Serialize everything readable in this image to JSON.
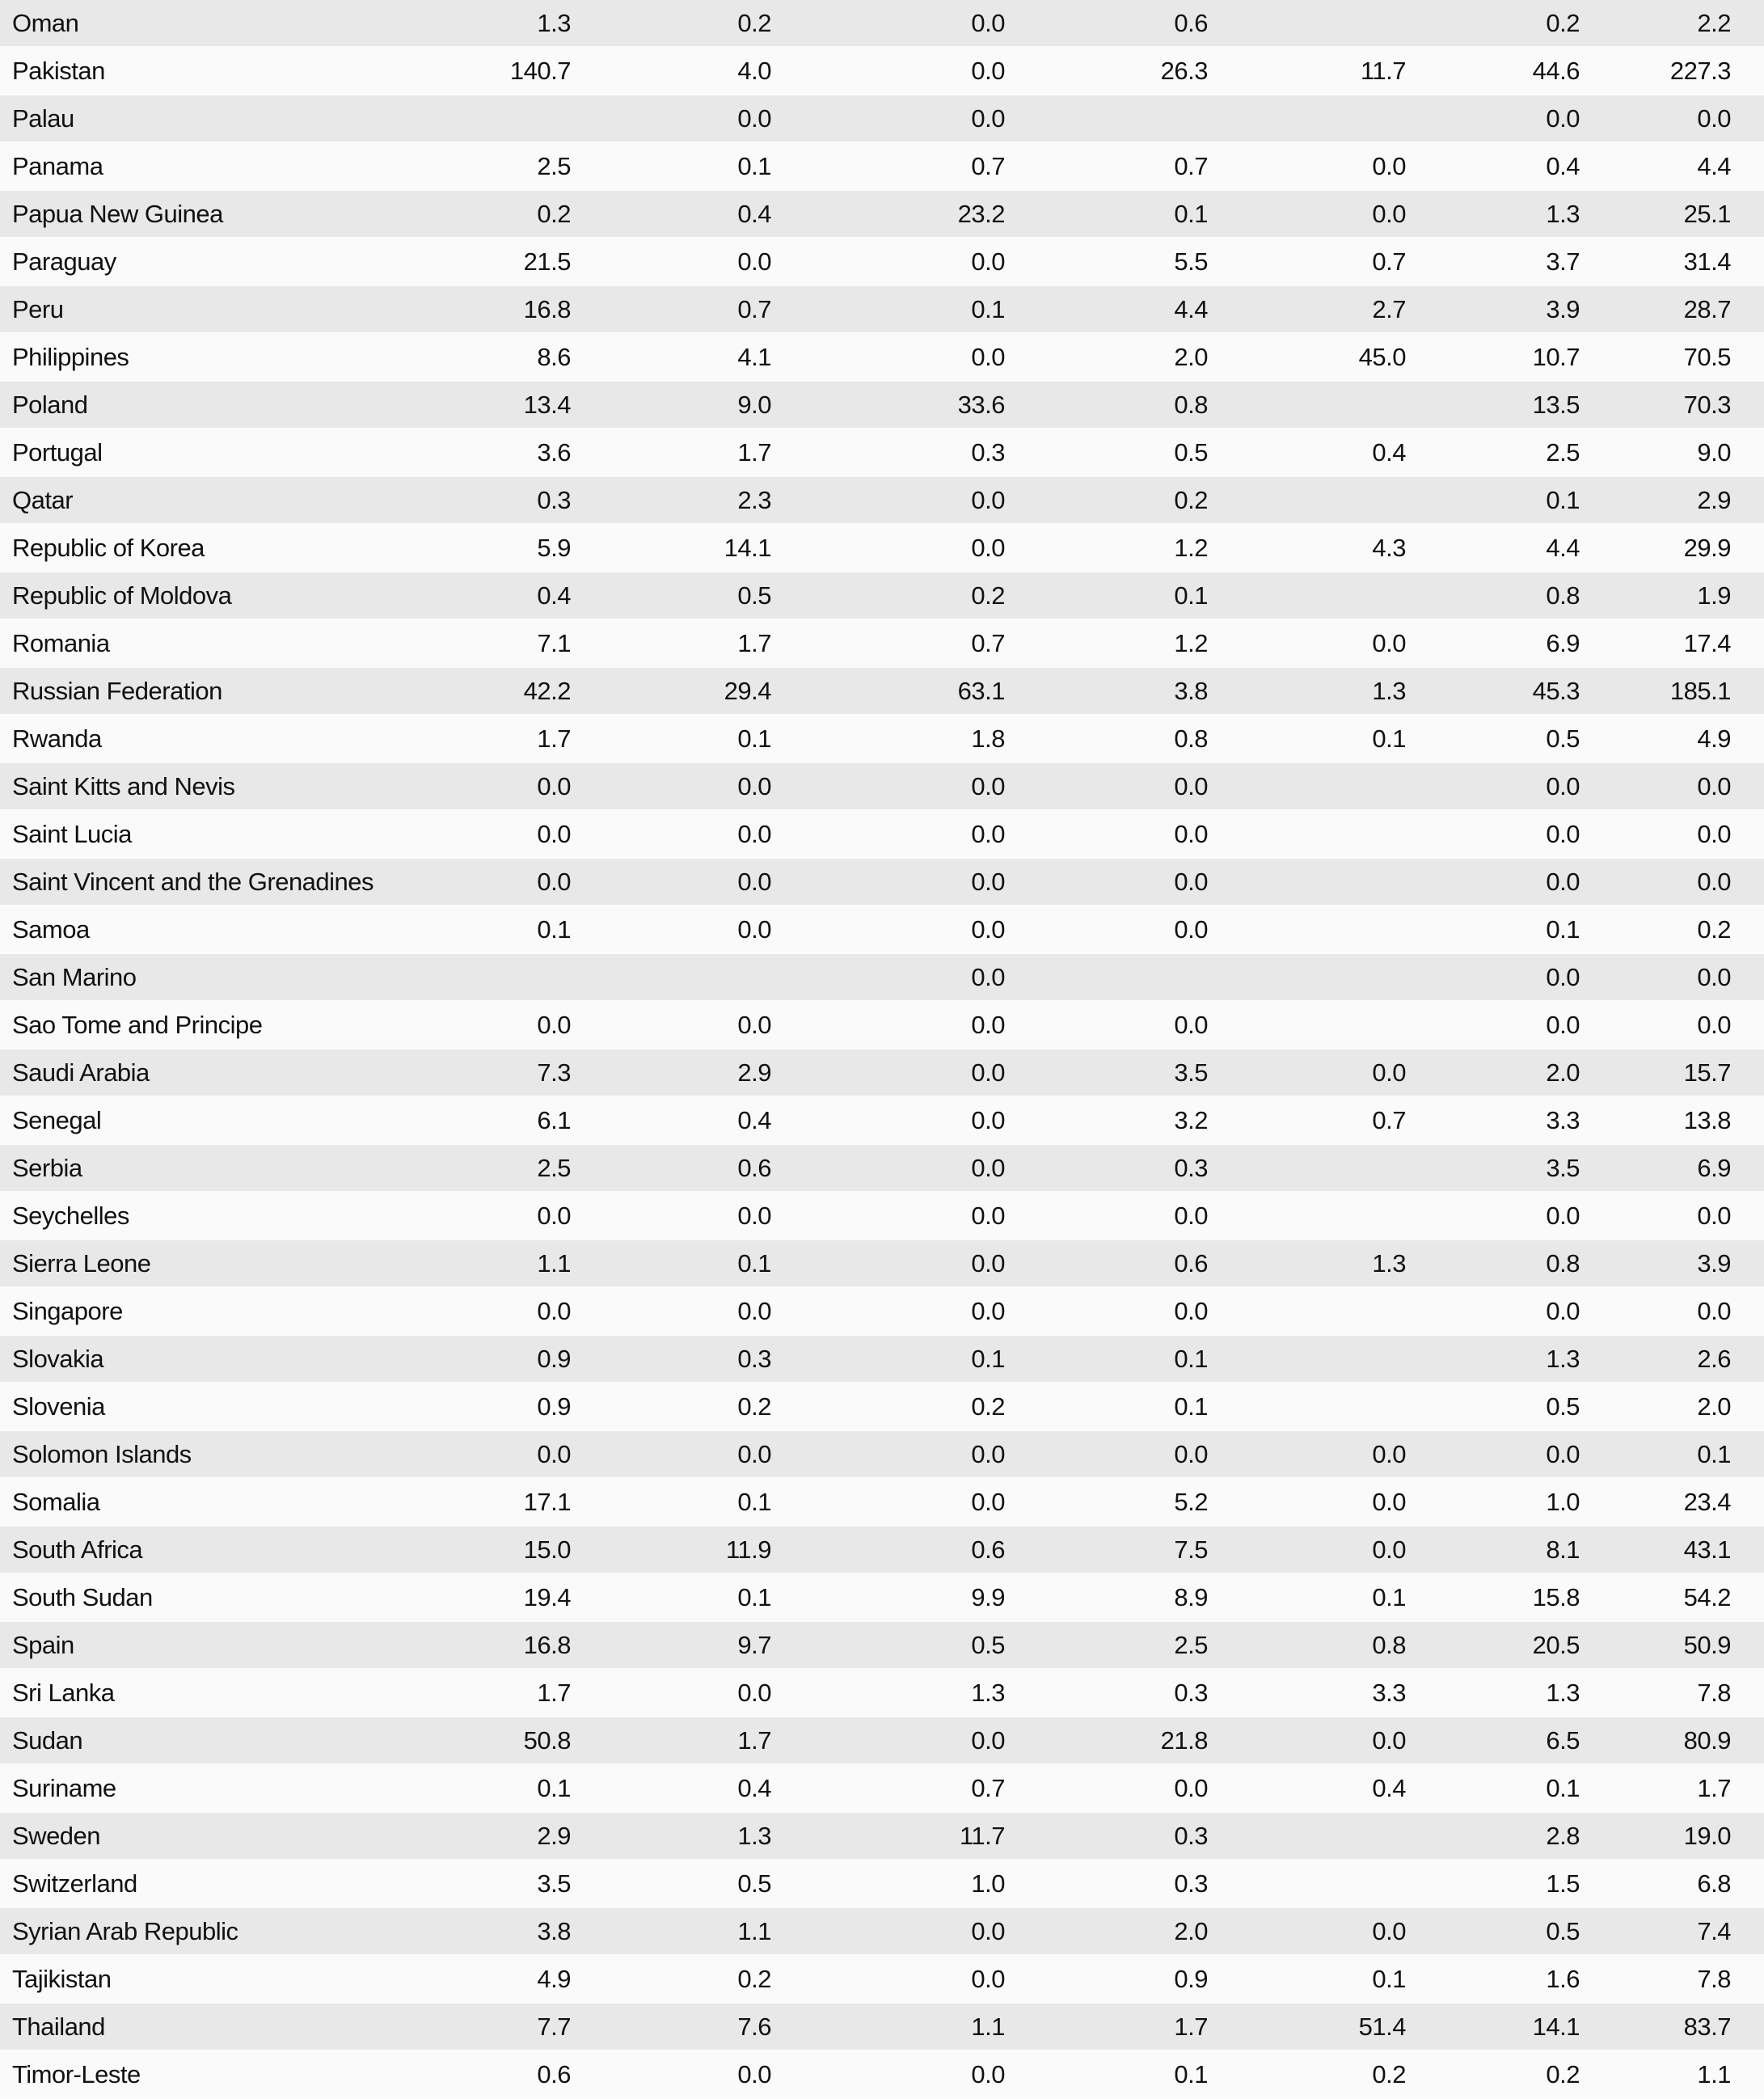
{
  "table": {
    "rows": [
      {
        "country": "Oman",
        "values": [
          "1.3",
          "0.2",
          "0.0",
          "0.6",
          "",
          "0.2",
          "2.2"
        ]
      },
      {
        "country": "Pakistan",
        "values": [
          "140.7",
          "4.0",
          "0.0",
          "26.3",
          "11.7",
          "44.6",
          "227.3"
        ]
      },
      {
        "country": "Palau",
        "values": [
          "",
          "0.0",
          "0.0",
          "",
          "",
          "0.0",
          "0.0"
        ]
      },
      {
        "country": "Panama",
        "values": [
          "2.5",
          "0.1",
          "0.7",
          "0.7",
          "0.0",
          "0.4",
          "4.4"
        ]
      },
      {
        "country": "Papua New Guinea",
        "values": [
          "0.2",
          "0.4",
          "23.2",
          "0.1",
          "0.0",
          "1.3",
          "25.1"
        ]
      },
      {
        "country": "Paraguay",
        "values": [
          "21.5",
          "0.0",
          "0.0",
          "5.5",
          "0.7",
          "3.7",
          "31.4"
        ]
      },
      {
        "country": "Peru",
        "values": [
          "16.8",
          "0.7",
          "0.1",
          "4.4",
          "2.7",
          "3.9",
          "28.7"
        ]
      },
      {
        "country": "Philippines",
        "values": [
          "8.6",
          "4.1",
          "0.0",
          "2.0",
          "45.0",
          "10.7",
          "70.5"
        ]
      },
      {
        "country": "Poland",
        "values": [
          "13.4",
          "9.0",
          "33.6",
          "0.8",
          "",
          "13.5",
          "70.3"
        ]
      },
      {
        "country": "Portugal",
        "values": [
          "3.6",
          "1.7",
          "0.3",
          "0.5",
          "0.4",
          "2.5",
          "9.0"
        ]
      },
      {
        "country": "Qatar",
        "values": [
          "0.3",
          "2.3",
          "0.0",
          "0.2",
          "",
          "0.1",
          "2.9"
        ]
      },
      {
        "country": "Republic of Korea",
        "values": [
          "5.9",
          "14.1",
          "0.0",
          "1.2",
          "4.3",
          "4.4",
          "29.9"
        ]
      },
      {
        "country": "Republic of Moldova",
        "values": [
          "0.4",
          "0.5",
          "0.2",
          "0.1",
          "",
          "0.8",
          "1.9"
        ]
      },
      {
        "country": "Romania",
        "values": [
          "7.1",
          "1.7",
          "0.7",
          "1.2",
          "0.0",
          "6.9",
          "17.4"
        ]
      },
      {
        "country": "Russian Federation",
        "values": [
          "42.2",
          "29.4",
          "63.1",
          "3.8",
          "1.3",
          "45.3",
          "185.1"
        ]
      },
      {
        "country": "Rwanda",
        "values": [
          "1.7",
          "0.1",
          "1.8",
          "0.8",
          "0.1",
          "0.5",
          "4.9"
        ]
      },
      {
        "country": "Saint Kitts and Nevis",
        "values": [
          "0.0",
          "0.0",
          "0.0",
          "0.0",
          "",
          "0.0",
          "0.0"
        ]
      },
      {
        "country": "Saint Lucia",
        "values": [
          "0.0",
          "0.0",
          "0.0",
          "0.0",
          "",
          "0.0",
          "0.0"
        ]
      },
      {
        "country": "Saint Vincent and the Grenadines",
        "values": [
          "0.0",
          "0.0",
          "0.0",
          "0.0",
          "",
          "0.0",
          "0.0"
        ]
      },
      {
        "country": "Samoa",
        "values": [
          "0.1",
          "0.0",
          "0.0",
          "0.0",
          "",
          "0.1",
          "0.2"
        ]
      },
      {
        "country": "San Marino",
        "values": [
          "",
          "",
          "0.0",
          "",
          "",
          "0.0",
          "0.0"
        ]
      },
      {
        "country": "Sao Tome and Principe",
        "values": [
          "0.0",
          "0.0",
          "0.0",
          "0.0",
          "",
          "0.0",
          "0.0"
        ]
      },
      {
        "country": "Saudi Arabia",
        "values": [
          "7.3",
          "2.9",
          "0.0",
          "3.5",
          "0.0",
          "2.0",
          "15.7"
        ]
      },
      {
        "country": "Senegal",
        "values": [
          "6.1",
          "0.4",
          "0.0",
          "3.2",
          "0.7",
          "3.3",
          "13.8"
        ]
      },
      {
        "country": "Serbia",
        "values": [
          "2.5",
          "0.6",
          "0.0",
          "0.3",
          "",
          "3.5",
          "6.9"
        ]
      },
      {
        "country": "Seychelles",
        "values": [
          "0.0",
          "0.0",
          "0.0",
          "0.0",
          "",
          "0.0",
          "0.0"
        ]
      },
      {
        "country": "Sierra Leone",
        "values": [
          "1.1",
          "0.1",
          "0.0",
          "0.6",
          "1.3",
          "0.8",
          "3.9"
        ]
      },
      {
        "country": "Singapore",
        "values": [
          "0.0",
          "0.0",
          "0.0",
          "0.0",
          "",
          "0.0",
          "0.0"
        ]
      },
      {
        "country": "Slovakia",
        "values": [
          "0.9",
          "0.3",
          "0.1",
          "0.1",
          "",
          "1.3",
          "2.6"
        ]
      },
      {
        "country": "Slovenia",
        "values": [
          "0.9",
          "0.2",
          "0.2",
          "0.1",
          "",
          "0.5",
          "2.0"
        ]
      },
      {
        "country": "Solomon Islands",
        "values": [
          "0.0",
          "0.0",
          "0.0",
          "0.0",
          "0.0",
          "0.0",
          "0.1"
        ]
      },
      {
        "country": "Somalia",
        "values": [
          "17.1",
          "0.1",
          "0.0",
          "5.2",
          "0.0",
          "1.0",
          "23.4"
        ]
      },
      {
        "country": "South Africa",
        "values": [
          "15.0",
          "11.9",
          "0.6",
          "7.5",
          "0.0",
          "8.1",
          "43.1"
        ]
      },
      {
        "country": "South Sudan",
        "values": [
          "19.4",
          "0.1",
          "9.9",
          "8.9",
          "0.1",
          "15.8",
          "54.2"
        ]
      },
      {
        "country": "Spain",
        "values": [
          "16.8",
          "9.7",
          "0.5",
          "2.5",
          "0.8",
          "20.5",
          "50.9"
        ]
      },
      {
        "country": "Sri Lanka",
        "values": [
          "1.7",
          "0.0",
          "1.3",
          "0.3",
          "3.3",
          "1.3",
          "7.8"
        ]
      },
      {
        "country": "Sudan",
        "values": [
          "50.8",
          "1.7",
          "0.0",
          "21.8",
          "0.0",
          "6.5",
          "80.9"
        ]
      },
      {
        "country": "Suriname",
        "values": [
          "0.1",
          "0.4",
          "0.7",
          "0.0",
          "0.4",
          "0.1",
          "1.7"
        ]
      },
      {
        "country": "Sweden",
        "values": [
          "2.9",
          "1.3",
          "11.7",
          "0.3",
          "",
          "2.8",
          "19.0"
        ]
      },
      {
        "country": "Switzerland",
        "values": [
          "3.5",
          "0.5",
          "1.0",
          "0.3",
          "",
          "1.5",
          "6.8"
        ]
      },
      {
        "country": "Syrian Arab Republic",
        "values": [
          "3.8",
          "1.1",
          "0.0",
          "2.0",
          "0.0",
          "0.5",
          "7.4"
        ]
      },
      {
        "country": "Tajikistan",
        "values": [
          "4.9",
          "0.2",
          "0.0",
          "0.9",
          "0.1",
          "1.6",
          "7.8"
        ]
      },
      {
        "country": "Thailand",
        "values": [
          "7.7",
          "7.6",
          "1.1",
          "1.7",
          "51.4",
          "14.1",
          "83.7"
        ]
      },
      {
        "country": "Timor-Leste",
        "values": [
          "0.6",
          "0.0",
          "0.0",
          "0.1",
          "0.2",
          "0.2",
          "1.1"
        ]
      }
    ]
  }
}
